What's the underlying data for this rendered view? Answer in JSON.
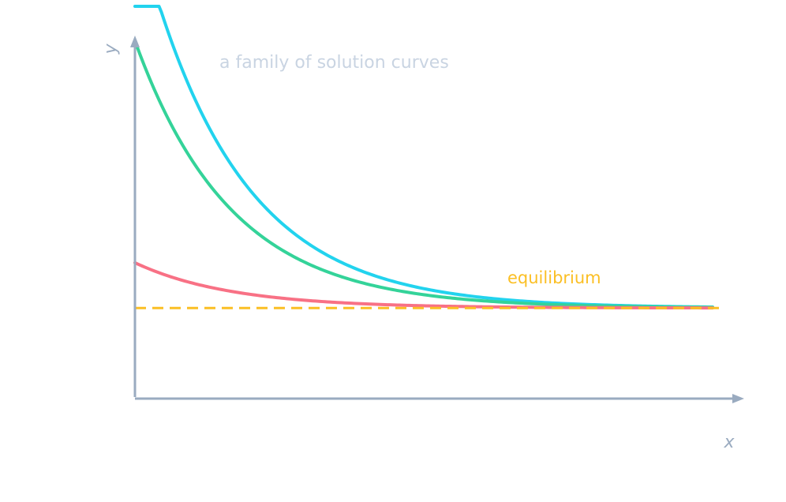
{
  "chart_data": {
    "type": "line",
    "title": "a family of solution curves",
    "xlabel": "x",
    "ylabel": "y",
    "xlim": [
      0,
      6
    ],
    "ylim": [
      0,
      4.4
    ],
    "grid": false,
    "legend": "none",
    "equilibrium": {
      "y": 1,
      "label": "equilibrium",
      "color": "#fbbf24",
      "style": "dashed"
    },
    "series": [
      {
        "color": "#22d3ee",
        "y0": 5.3,
        "k": 1.0
      },
      {
        "color": "#34d399",
        "y0": 3.95,
        "k": 1.0
      },
      {
        "color": "#f87185",
        "y0": 1.5,
        "k": 1.0
      }
    ],
    "colors": {
      "axis": "#9aabc0",
      "title": "#c9d4e2"
    }
  }
}
